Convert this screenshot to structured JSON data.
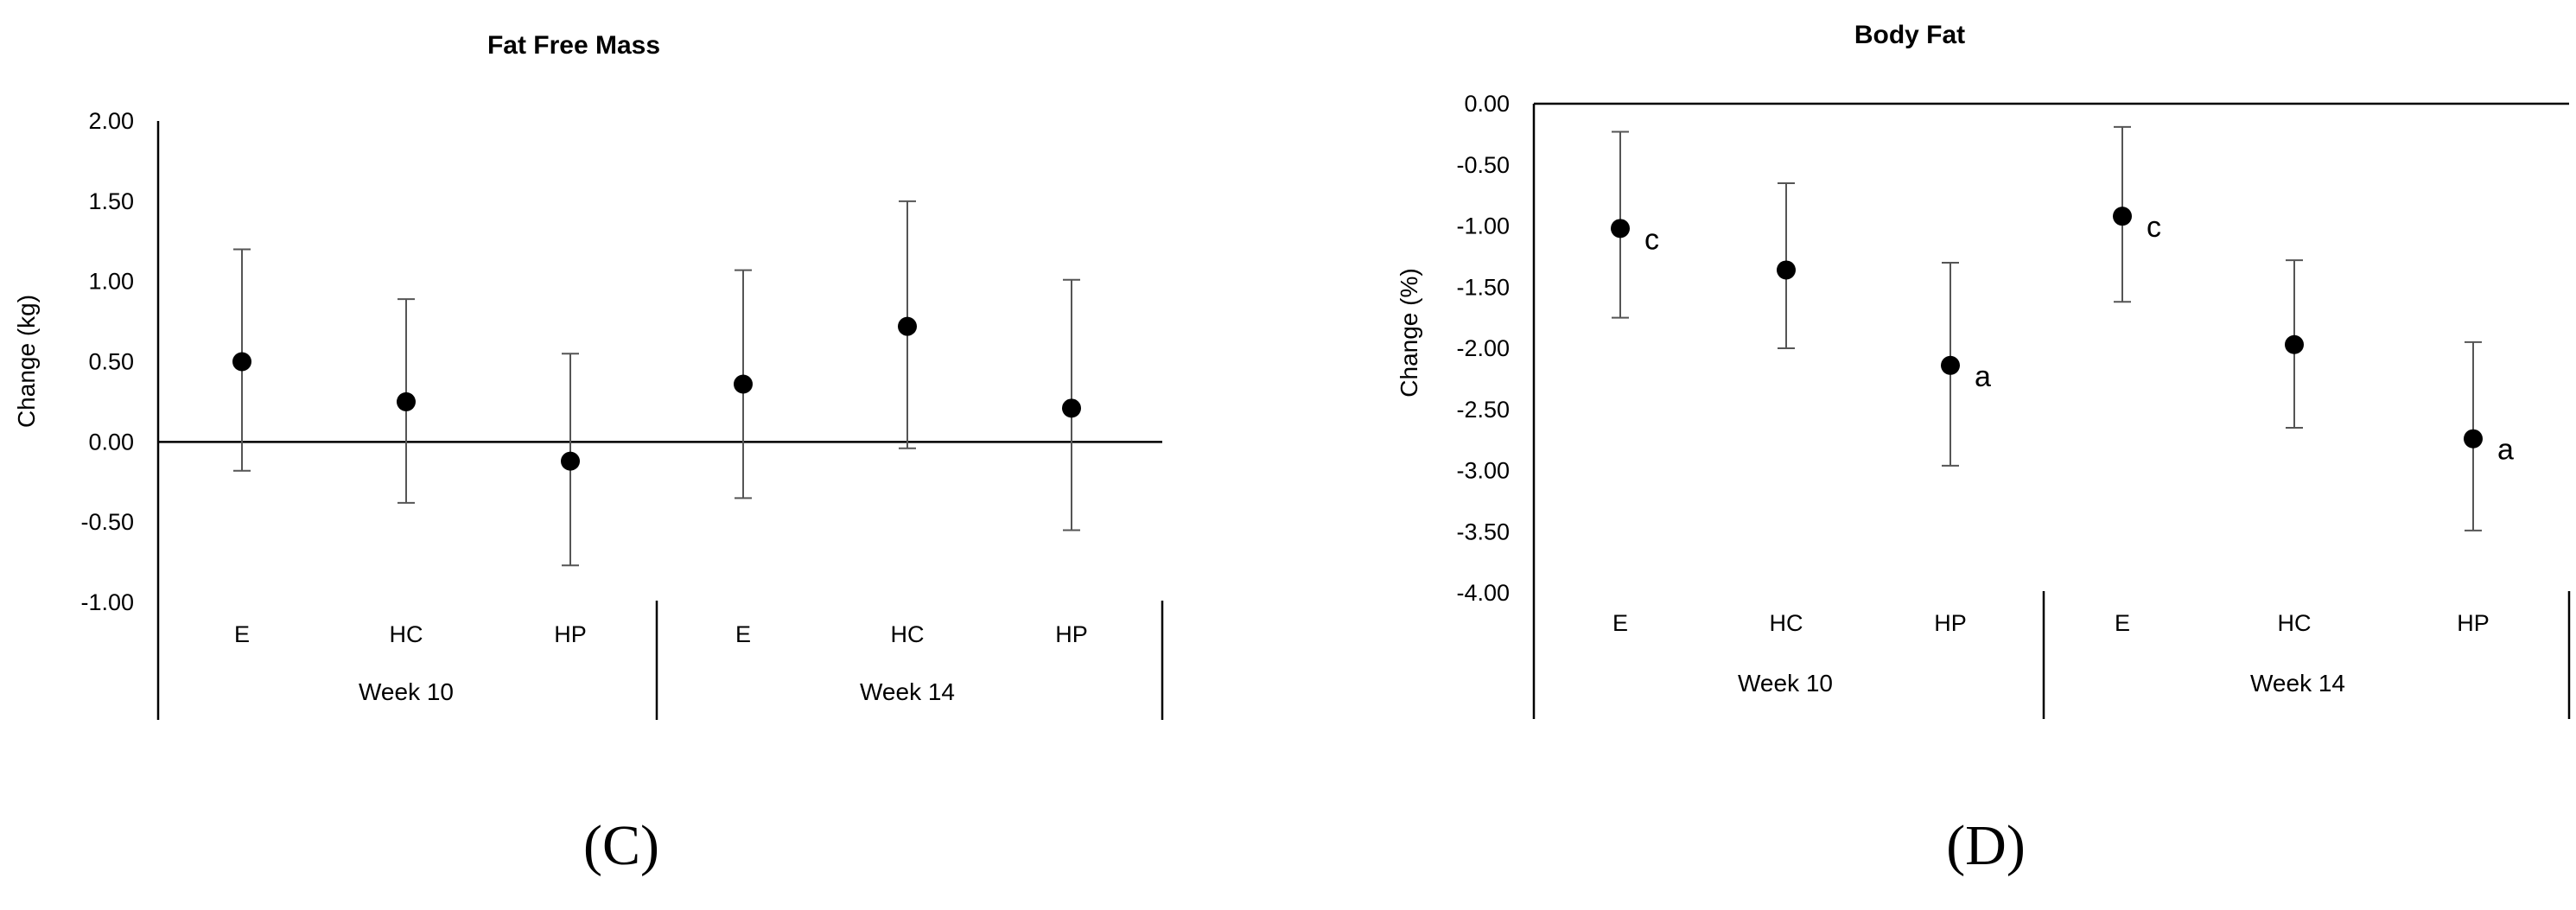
{
  "chart_data": [
    {
      "panel": "(C)",
      "type": "scatter",
      "title": "Fat Free Mass",
      "ylabel": "Change (kg)",
      "ylim": [
        -1.0,
        2.0
      ],
      "yticks": [
        "2.00",
        "1.50",
        "1.00",
        "0.50",
        "0.00",
        "-0.50",
        "-1.00"
      ],
      "groups": [
        "Week 10",
        "Week 14"
      ],
      "categories": [
        "E",
        "HC",
        "HP",
        "E",
        "HC",
        "HP"
      ],
      "points": [
        {
          "group": "Week 10",
          "category": "E",
          "y": 0.5,
          "err_low": -0.18,
          "err_high": 1.2,
          "annotation": ""
        },
        {
          "group": "Week 10",
          "category": "HC",
          "y": 0.25,
          "err_low": -0.38,
          "err_high": 0.89,
          "annotation": ""
        },
        {
          "group": "Week 10",
          "category": "HP",
          "y": -0.12,
          "err_low": -0.77,
          "err_high": 0.55,
          "annotation": ""
        },
        {
          "group": "Week 14",
          "category": "E",
          "y": 0.36,
          "err_low": -0.35,
          "err_high": 1.07,
          "annotation": ""
        },
        {
          "group": "Week 14",
          "category": "HC",
          "y": 0.72,
          "err_low": -0.04,
          "err_high": 1.5,
          "annotation": ""
        },
        {
          "group": "Week 14",
          "category": "HP",
          "y": 0.21,
          "err_low": -0.55,
          "err_high": 1.01,
          "annotation": ""
        }
      ],
      "grid": false,
      "legend": "none"
    },
    {
      "panel": "(D)",
      "type": "scatter",
      "title": "Body Fat",
      "ylabel": "Change (%)",
      "ylim": [
        -4.0,
        0.0
      ],
      "yticks": [
        "0.00",
        "-0.50",
        "-1.00",
        "-1.50",
        "-2.00",
        "-2.50",
        "-3.00",
        "-3.50",
        "-4.00"
      ],
      "groups": [
        "Week 10",
        "Week 14"
      ],
      "categories": [
        "E",
        "HC",
        "HP",
        "E",
        "HC",
        "HP"
      ],
      "points": [
        {
          "group": "Week 10",
          "category": "E",
          "y": -1.02,
          "err_low": -1.75,
          "err_high": -0.23,
          "annotation": "c"
        },
        {
          "group": "Week 10",
          "category": "HC",
          "y": -1.36,
          "err_low": -2.0,
          "err_high": -0.65,
          "annotation": ""
        },
        {
          "group": "Week 10",
          "category": "HP",
          "y": -2.14,
          "err_low": -2.96,
          "err_high": -1.3,
          "annotation": "a"
        },
        {
          "group": "Week 14",
          "category": "E",
          "y": -0.92,
          "err_low": -1.62,
          "err_high": -0.19,
          "annotation": "c"
        },
        {
          "group": "Week 14",
          "category": "HC",
          "y": -1.97,
          "err_low": -2.65,
          "err_high": -1.28,
          "annotation": ""
        },
        {
          "group": "Week 14",
          "category": "HP",
          "y": -2.74,
          "err_low": -3.49,
          "err_high": -1.95,
          "annotation": "a"
        }
      ],
      "grid": false,
      "legend": "none"
    }
  ]
}
